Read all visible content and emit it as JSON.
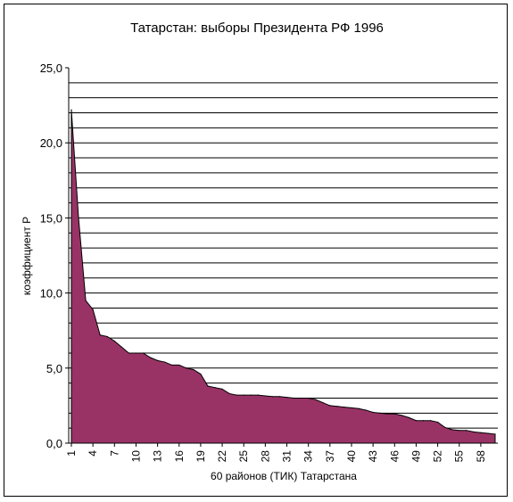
{
  "chart_data": {
    "type": "area",
    "title": "Татарстан: выборы Президента РФ 1996",
    "xlabel": "60 районов (ТИК) Татарстана",
    "ylabel": "коэффициент Р",
    "ylim": [
      0,
      25
    ],
    "y_ticks": [
      "0,0",
      "5,0",
      "10,0",
      "15,0",
      "20,0",
      "25,0"
    ],
    "x_ticks": [
      "1",
      "4",
      "7",
      "10",
      "13",
      "16",
      "19",
      "22",
      "25",
      "28",
      "31",
      "34",
      "37",
      "40",
      "43",
      "46",
      "49",
      "52",
      "55",
      "58"
    ],
    "grid": true,
    "legend": "none",
    "colors": {
      "fill": "#993366",
      "stroke": "#000000",
      "grid": "#000000"
    },
    "x": [
      1,
      2,
      3,
      4,
      5,
      6,
      7,
      8,
      9,
      10,
      11,
      12,
      13,
      14,
      15,
      16,
      17,
      18,
      19,
      20,
      21,
      22,
      23,
      24,
      25,
      26,
      27,
      28,
      29,
      30,
      31,
      32,
      33,
      34,
      35,
      36,
      37,
      38,
      39,
      40,
      41,
      42,
      43,
      44,
      45,
      46,
      47,
      48,
      49,
      50,
      51,
      52,
      53,
      54,
      55,
      56,
      57,
      58,
      59,
      60
    ],
    "series": [
      {
        "values": [
          22.2,
          15.0,
          9.5,
          8.9,
          7.2,
          7.1,
          6.8,
          6.4,
          6.0,
          6.0,
          6.0,
          5.7,
          5.5,
          5.4,
          5.2,
          5.2,
          5.0,
          4.9,
          4.6,
          3.8,
          3.7,
          3.6,
          3.3,
          3.2,
          3.2,
          3.2,
          3.2,
          3.15,
          3.1,
          3.1,
          3.05,
          3.0,
          3.0,
          3.0,
          2.9,
          2.7,
          2.5,
          2.45,
          2.4,
          2.35,
          2.3,
          2.2,
          2.05,
          2.0,
          1.95,
          1.95,
          1.85,
          1.7,
          1.5,
          1.5,
          1.5,
          1.4,
          1.05,
          0.9,
          0.85,
          0.85,
          0.75,
          0.7,
          0.65,
          0.6
        ]
      }
    ]
  }
}
